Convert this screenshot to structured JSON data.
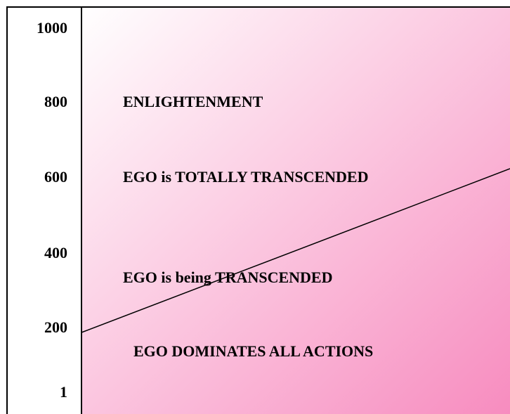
{
  "scale": [
    "1000",
    "800",
    "600",
    "400",
    "200",
    "1"
  ],
  "zones": [
    "ENLIGHTENMENT",
    "EGO is TOTALLY TRANSCENDED",
    "EGO is being TRANSCENDED",
    "EGO DOMINATES ALL ACTIONS"
  ]
}
